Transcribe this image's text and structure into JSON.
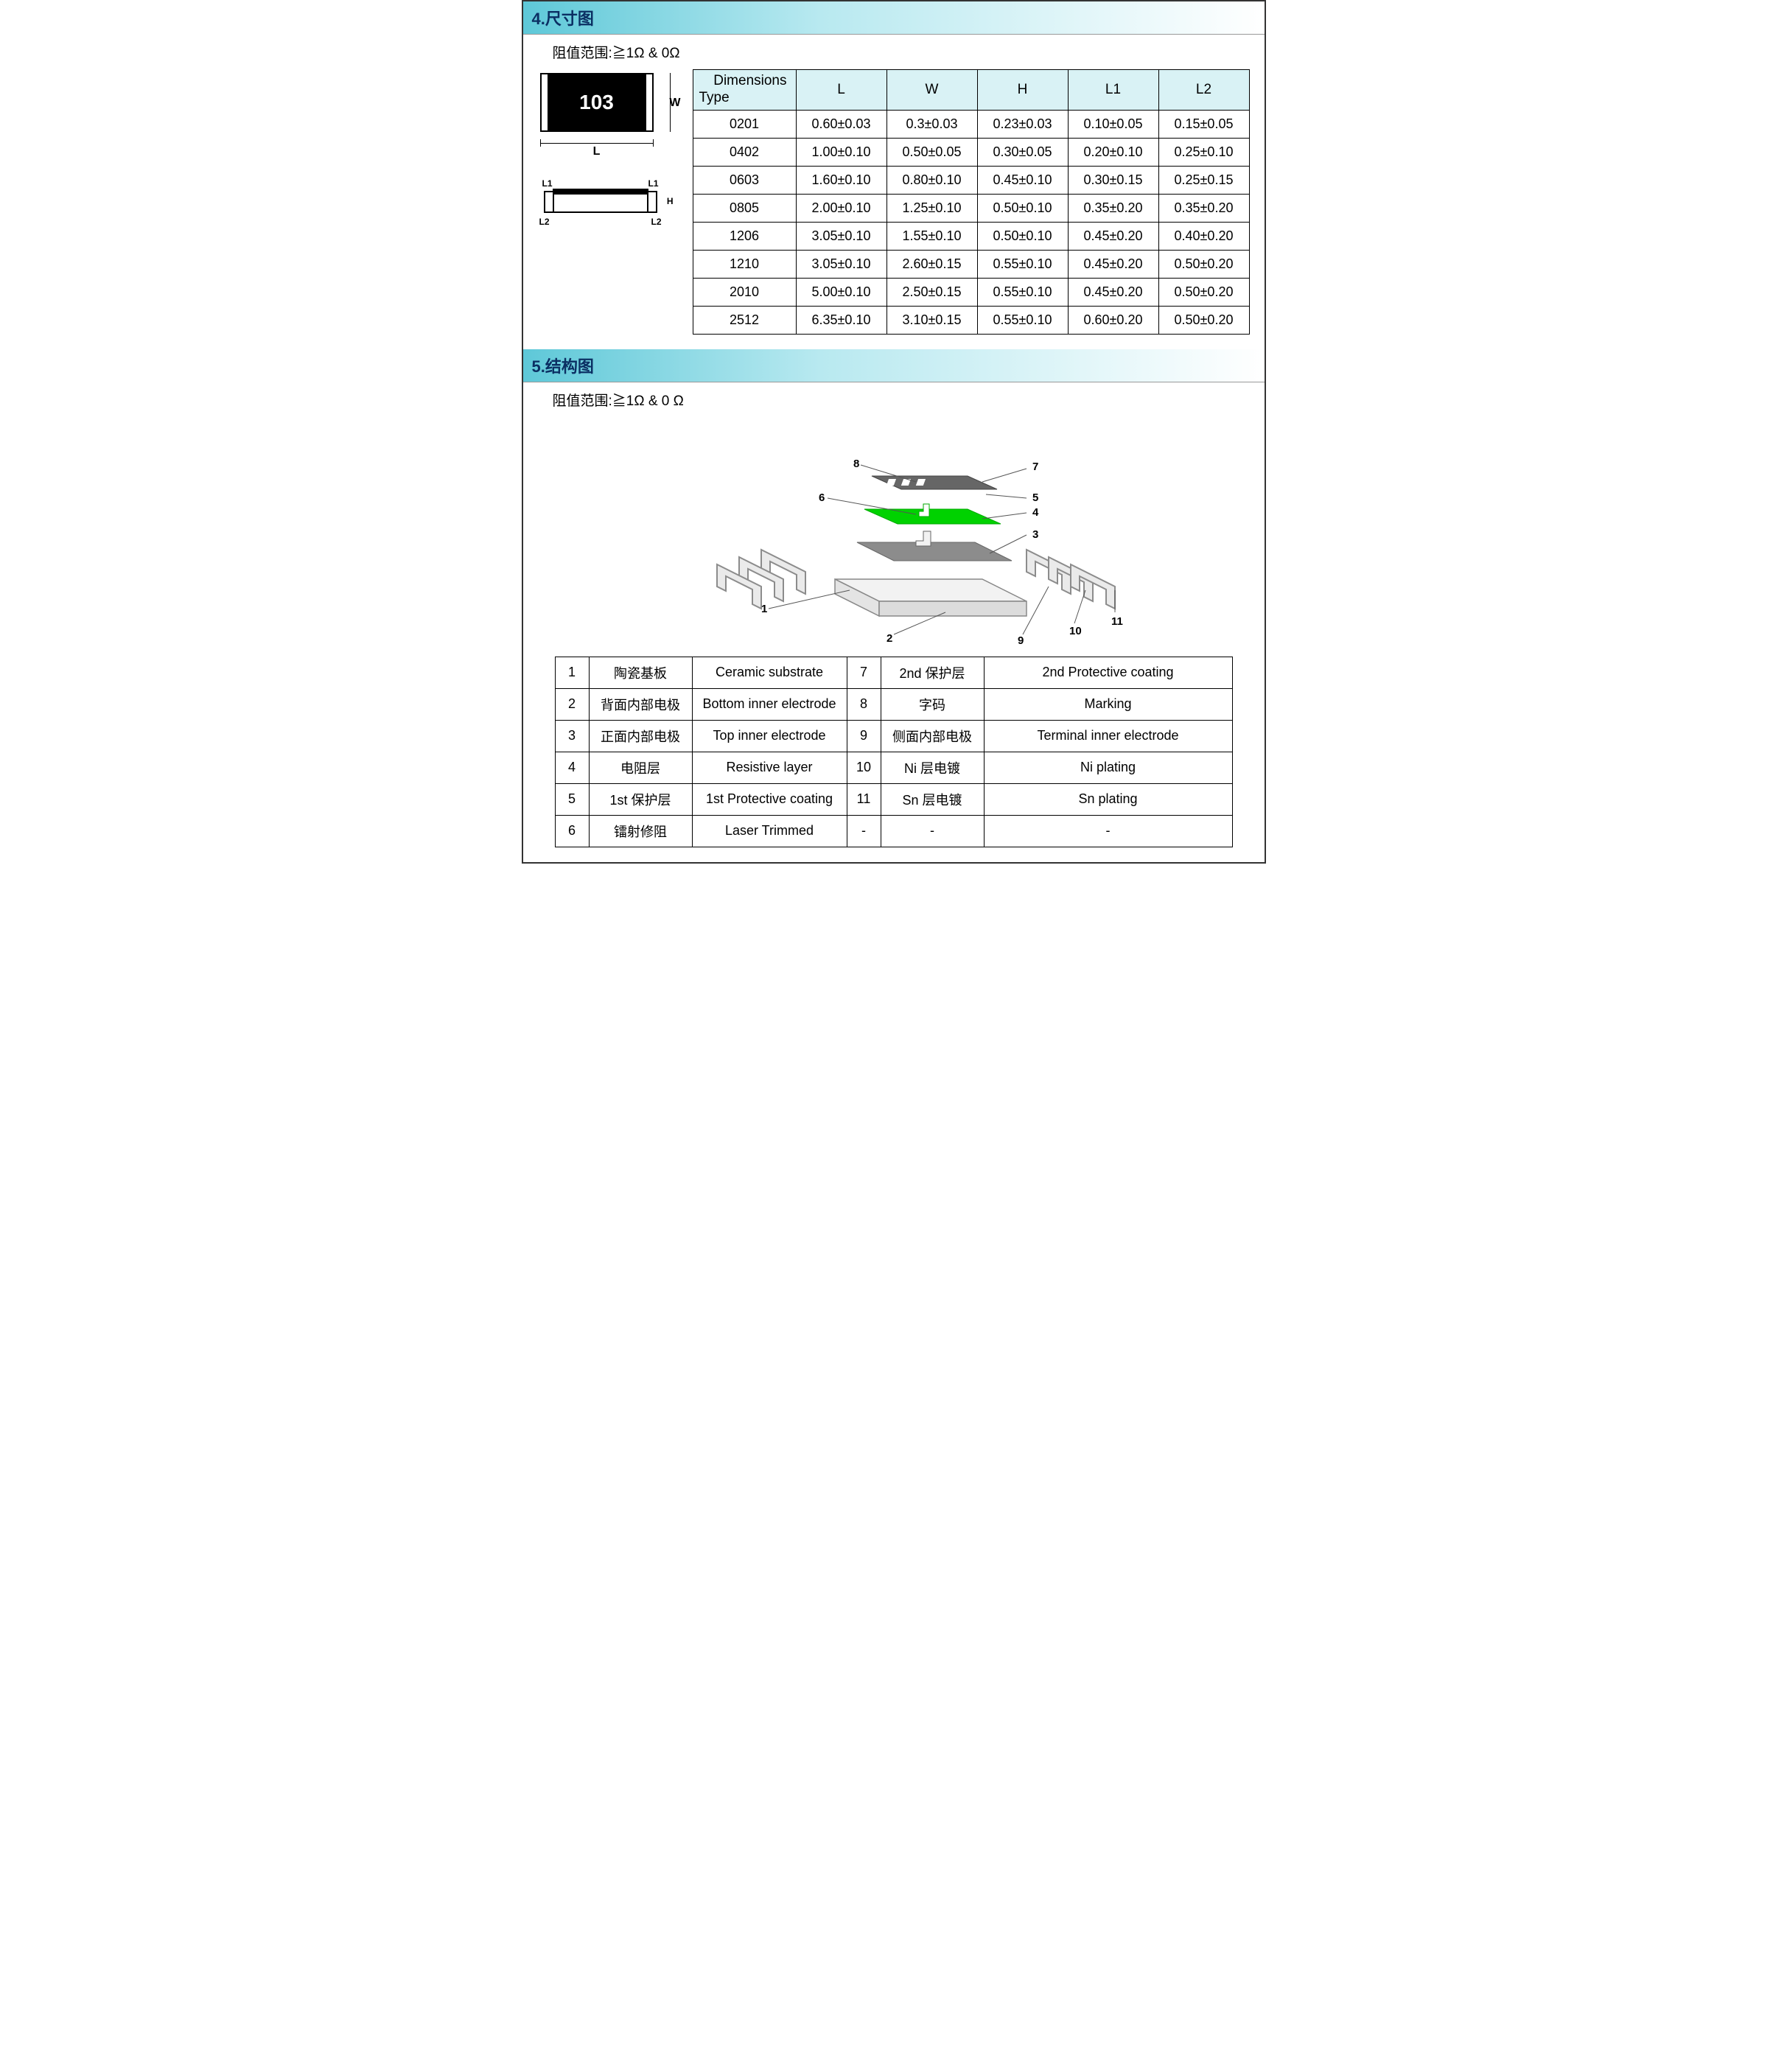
{
  "section4": {
    "title": "4.尺寸图",
    "subtitle": "阻值范围:≧1Ω & 0Ω",
    "chip_marking": "103",
    "dim_L": "L",
    "dim_W": "W",
    "dim_H": "H",
    "dim_L1a": "L1",
    "dim_L1b": "L1",
    "dim_L2a": "L2",
    "dim_L2b": "L2",
    "table": {
      "header_diag_top": "Dimensions",
      "header_diag_bot": "Type",
      "columns": [
        "L",
        "W",
        "H",
        "L1",
        "L2"
      ],
      "rows": [
        {
          "type": "0201",
          "cells": [
            "0.60±0.03",
            "0.3±0.03",
            "0.23±0.03",
            "0.10±0.05",
            "0.15±0.05"
          ]
        },
        {
          "type": "0402",
          "cells": [
            "1.00±0.10",
            "0.50±0.05",
            "0.30±0.05",
            "0.20±0.10",
            "0.25±0.10"
          ]
        },
        {
          "type": "0603",
          "cells": [
            "1.60±0.10",
            "0.80±0.10",
            "0.45±0.10",
            "0.30±0.15",
            "0.25±0.15"
          ]
        },
        {
          "type": "0805",
          "cells": [
            "2.00±0.10",
            "1.25±0.10",
            "0.50±0.10",
            "0.35±0.20",
            "0.35±0.20"
          ]
        },
        {
          "type": "1206",
          "cells": [
            "3.05±0.10",
            "1.55±0.10",
            "0.50±0.10",
            "0.45±0.20",
            "0.40±0.20"
          ]
        },
        {
          "type": "1210",
          "cells": [
            "3.05±0.10",
            "2.60±0.15",
            "0.55±0.10",
            "0.45±0.20",
            "0.50±0.20"
          ]
        },
        {
          "type": "2010",
          "cells": [
            "5.00±0.10",
            "2.50±0.15",
            "0.55±0.10",
            "0.45±0.20",
            "0.50±0.20"
          ]
        },
        {
          "type": "2512",
          "cells": [
            "6.35±0.10",
            "3.10±0.15",
            "0.55±0.10",
            "0.60±0.20",
            "0.50±0.20"
          ]
        }
      ]
    }
  },
  "section5": {
    "title": "5.结构图",
    "subtitle": "阻值范围:≧1Ω & 0 Ω",
    "callouts": {
      "1": "1",
      "2": "2",
      "3": "3",
      "4": "4",
      "5": "5",
      "6": "6",
      "7": "7",
      "8": "8",
      "9": "9",
      "10": "10",
      "11": "11"
    },
    "diagram_colors": {
      "substrate": "#f0f0f0",
      "electrode_top": "#8c8c8c",
      "resistive": "#8c8c8c",
      "protective1": "#00d200",
      "protective2": "#666666",
      "marking_bg": "#555555",
      "marking_slots": "#ffffff",
      "terminal_fill": "#e8e8e8",
      "terminal_stroke": "#8c8c8c",
      "line": "#555555"
    },
    "legend": [
      {
        "n": "1",
        "cn": "陶瓷基板",
        "en": "Ceramic substrate",
        "n2": "7",
        "cn2": "2nd 保护层",
        "en2": "2nd Protective coating"
      },
      {
        "n": "2",
        "cn": "背面内部电极",
        "en": "Bottom inner electrode",
        "n2": "8",
        "cn2": "字码",
        "en2": "Marking"
      },
      {
        "n": "3",
        "cn": "正面内部电极",
        "en": "Top inner electrode",
        "n2": "9",
        "cn2": "侧面内部电极",
        "en2": "Terminal inner electrode"
      },
      {
        "n": "4",
        "cn": "电阻层",
        "en": "Resistive layer",
        "n2": "10",
        "cn2": "Ni 层电镀",
        "en2": "Ni plating"
      },
      {
        "n": "5",
        "cn": "1st 保护层",
        "en": "1st Protective coating",
        "n2": "11",
        "cn2": "Sn 层电镀",
        "en2": "Sn plating"
      },
      {
        "n": "6",
        "cn": "镭射修阻",
        "en": "Laser Trimmed",
        "n2": "-",
        "cn2": "-",
        "en2": "-"
      }
    ]
  }
}
